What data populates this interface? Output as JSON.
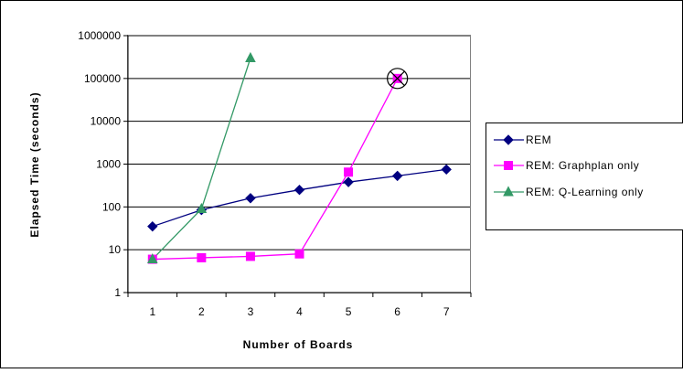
{
  "chart_data": {
    "type": "line",
    "title": "",
    "xlabel": "Number of Boards",
    "ylabel": "Elapsed Time (seconds)",
    "y_scale": "log",
    "ylim": [
      1,
      1000000
    ],
    "xlim": [
      0.5,
      7.5
    ],
    "x_ticks": [
      "1",
      "2",
      "3",
      "4",
      "5",
      "6",
      "7"
    ],
    "y_ticks": [
      "1",
      "10",
      "100",
      "1000",
      "10000",
      "100000",
      "1000000"
    ],
    "grid": "horizontal major",
    "legend_position": "right",
    "series": [
      {
        "name": "REM",
        "color": "#000080",
        "marker": "diamond",
        "x": [
          1,
          2,
          3,
          4,
          5,
          6,
          7
        ],
        "y": [
          35,
          85,
          160,
          250,
          380,
          530,
          750
        ]
      },
      {
        "name": "REM: Graphplan only",
        "color": "#ff00ff",
        "marker": "square",
        "x": [
          1,
          2,
          3,
          4,
          5,
          6
        ],
        "y": [
          6,
          6.5,
          7,
          8,
          650,
          100000
        ]
      },
      {
        "name": "REM: Q-Learning only",
        "color": "#339966",
        "marker": "triangle",
        "x": [
          1,
          2,
          3
        ],
        "y": [
          6,
          90,
          300000
        ]
      }
    ],
    "annotations": [
      {
        "type": "circled-x-marker",
        "x": 6,
        "y": 100000
      }
    ]
  }
}
